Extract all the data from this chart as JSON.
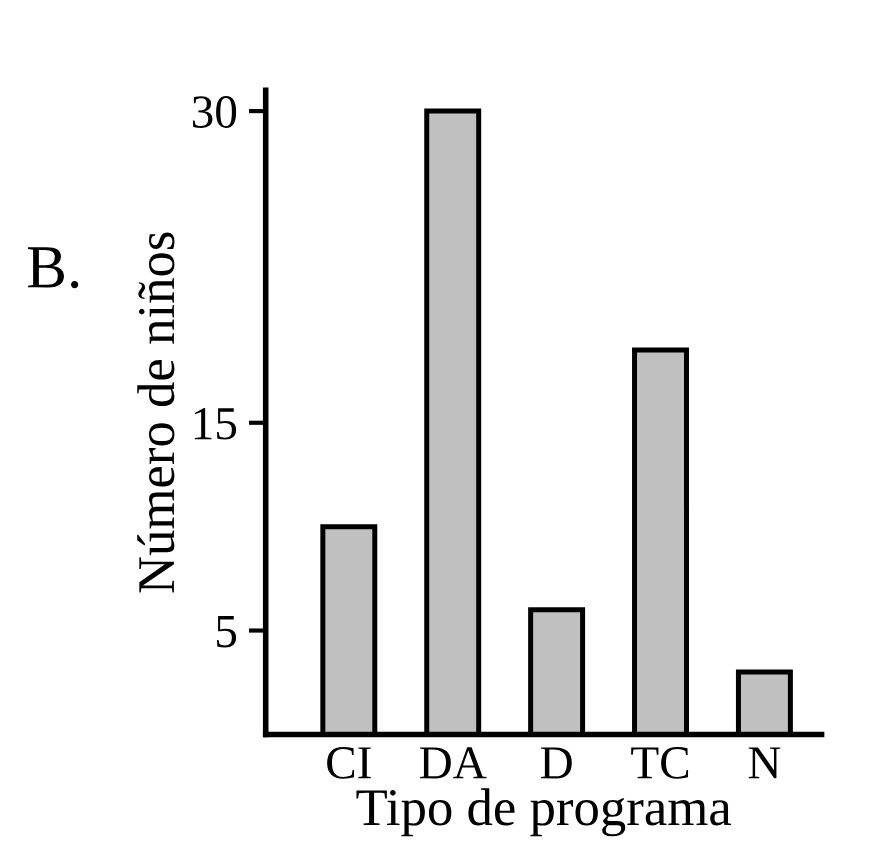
{
  "chart_data": {
    "type": "bar",
    "xlabel": "Tipo de programa",
    "ylabel": "Número de niños",
    "categories": [
      "CI",
      "DA",
      "D",
      "TC",
      "N"
    ],
    "values": [
      10,
      30,
      6,
      18.5,
      3
    ],
    "color": "#c0c0c0",
    "ylim": [
      0,
      31
    ],
    "yticks": [
      5,
      15,
      30
    ],
    "grid": false,
    "legend": false,
    "annotations": [
      "B."
    ]
  }
}
